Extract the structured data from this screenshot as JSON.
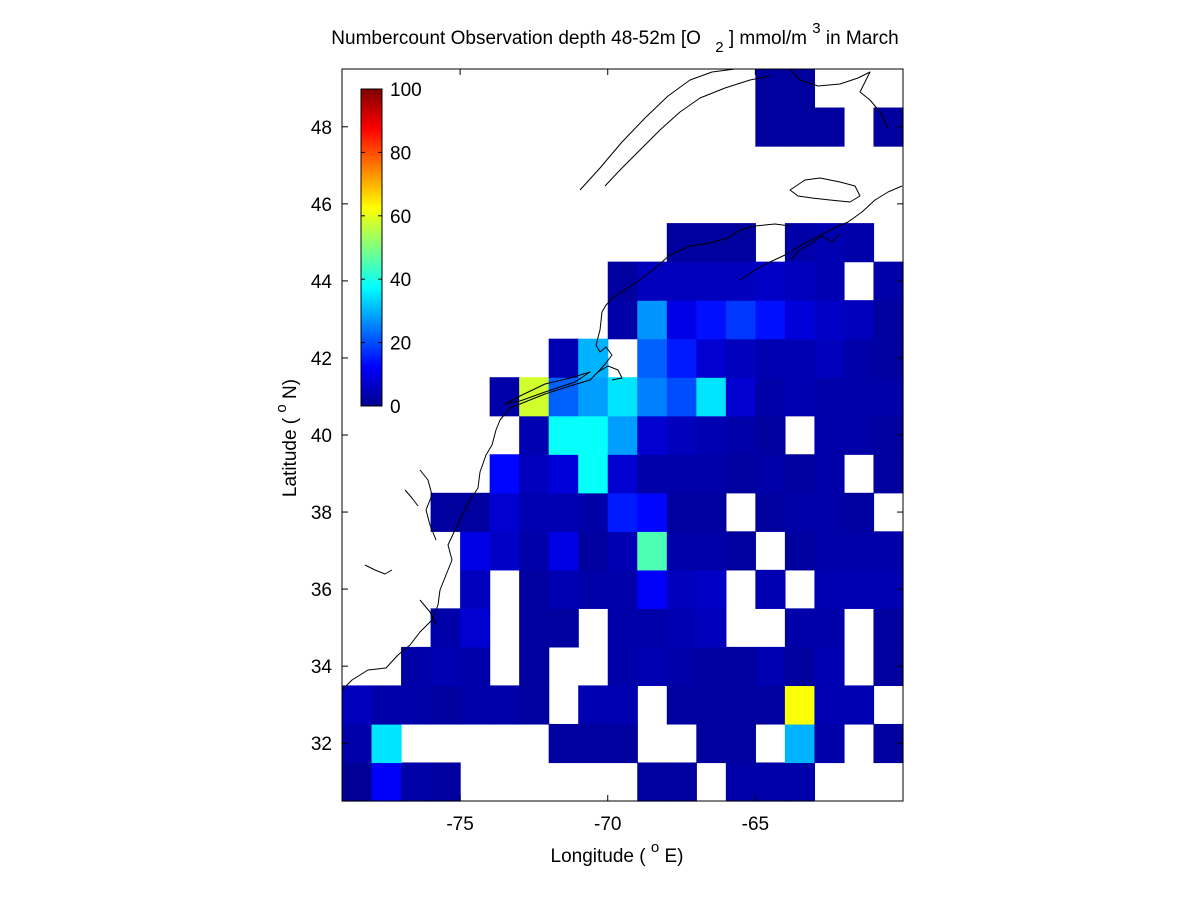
{
  "title": {
    "prefix": "Numbercount Observation depth 48-52m [O",
    "subscript": "2",
    "suffix": "] mmol/m",
    "superscript": "3",
    "tail": " in March"
  },
  "xaxis": {
    "label_pre": "Longitude ( ",
    "label_sup": "o",
    "label_post": "E)",
    "range": [
      -79,
      -60
    ],
    "ticks": [
      -75,
      -70,
      -65
    ],
    "tick_labels": [
      "-75",
      "-70",
      "-65"
    ]
  },
  "yaxis": {
    "label_pre": "Latitude ( ",
    "label_sup": "o",
    "label_post": "N)",
    "range": [
      30.5,
      49.5
    ],
    "ticks": [
      32,
      34,
      36,
      38,
      40,
      42,
      44,
      46,
      48
    ],
    "tick_labels": [
      "32",
      "34",
      "36",
      "38",
      "40",
      "42",
      "44",
      "46",
      "48"
    ]
  },
  "colorbar": {
    "colormap": "jet",
    "range": [
      0,
      100
    ],
    "ticks": [
      0,
      20,
      40,
      60,
      80,
      100
    ],
    "tick_labels": [
      "0",
      "20",
      "40",
      "60",
      "80",
      "100"
    ],
    "placement": "inside upper-left"
  },
  "chart_data": {
    "type": "heatmap",
    "grid": {
      "lon_origin": -79,
      "lat_origin": 30.5,
      "cell_size_deg": 1,
      "note_columns": "column 0 = lon -79..-78, increasing east",
      "note_rows": "row 0 = lat 30.5..31.5, increasing north; null = no data"
    },
    "values": [
      [
        2,
        12,
        4,
        3,
        null,
        null,
        null,
        null,
        null,
        null,
        3,
        3,
        null,
        4,
        4,
        4,
        null,
        null,
        null
      ],
      [
        4,
        35,
        null,
        null,
        null,
        null,
        null,
        3,
        3,
        3,
        null,
        null,
        3,
        3,
        null,
        30,
        4,
        null,
        3
      ],
      [
        6,
        4,
        4,
        3,
        4,
        4,
        3,
        null,
        5,
        5,
        null,
        3,
        3,
        3,
        3,
        62,
        5,
        5,
        null
      ],
      [
        null,
        null,
        4,
        5,
        4,
        null,
        3,
        null,
        null,
        4,
        5,
        4,
        3,
        3,
        5,
        3,
        5,
        null,
        3
      ],
      [
        null,
        null,
        null,
        4,
        8,
        null,
        3,
        3,
        null,
        4,
        4,
        5,
        6,
        null,
        null,
        4,
        4,
        null,
        3
      ],
      [
        null,
        null,
        null,
        null,
        6,
        null,
        3,
        5,
        4,
        4,
        12,
        6,
        7,
        null,
        5,
        null,
        5,
        5,
        5
      ],
      [
        null,
        null,
        null,
        null,
        10,
        7,
        4,
        10,
        3,
        5,
        45,
        4,
        4,
        3,
        null,
        3,
        4,
        4,
        4
      ],
      [
        null,
        null,
        null,
        3,
        3,
        8,
        5,
        5,
        4,
        15,
        13,
        3,
        3,
        null,
        3,
        4,
        4,
        3,
        null
      ],
      [
        null,
        null,
        null,
        null,
        null,
        13,
        6,
        9,
        38,
        8,
        4,
        4,
        4,
        3,
        4,
        3,
        4,
        null,
        3
      ],
      [
        null,
        null,
        null,
        null,
        null,
        null,
        5,
        38,
        38,
        28,
        8,
        6,
        5,
        4,
        3,
        null,
        4,
        4,
        3
      ],
      [
        null,
        null,
        null,
        null,
        null,
        4,
        58,
        22,
        28,
        35,
        25,
        20,
        35,
        8,
        4,
        5,
        4,
        4,
        4
      ],
      [
        null,
        null,
        null,
        null,
        null,
        null,
        null,
        5,
        30,
        null,
        22,
        15,
        8,
        6,
        5,
        5,
        6,
        4,
        3
      ],
      [
        null,
        null,
        null,
        null,
        null,
        null,
        null,
        null,
        null,
        4,
        27,
        10,
        14,
        18,
        14,
        9,
        7,
        6,
        3
      ],
      [
        null,
        null,
        null,
        null,
        null,
        null,
        null,
        null,
        null,
        3,
        6,
        6,
        6,
        6,
        7,
        6,
        5,
        null,
        4
      ],
      [
        null,
        null,
        null,
        null,
        null,
        null,
        null,
        null,
        null,
        null,
        null,
        3,
        3,
        3,
        null,
        4,
        5,
        4,
        null
      ],
      [
        null,
        null,
        null,
        null,
        null,
        null,
        null,
        null,
        null,
        null,
        null,
        null,
        null,
        null,
        null,
        null,
        null,
        null,
        null
      ],
      [
        null,
        null,
        null,
        null,
        null,
        null,
        null,
        null,
        null,
        null,
        null,
        null,
        null,
        null,
        null,
        null,
        null,
        null,
        null
      ],
      [
        null,
        null,
        null,
        null,
        null,
        null,
        null,
        null,
        null,
        null,
        null,
        null,
        null,
        null,
        3,
        3,
        3,
        null,
        3
      ],
      [
        null,
        null,
        null,
        null,
        null,
        null,
        null,
        null,
        null,
        null,
        null,
        null,
        null,
        null,
        3,
        3,
        null,
        null,
        null
      ]
    ]
  }
}
